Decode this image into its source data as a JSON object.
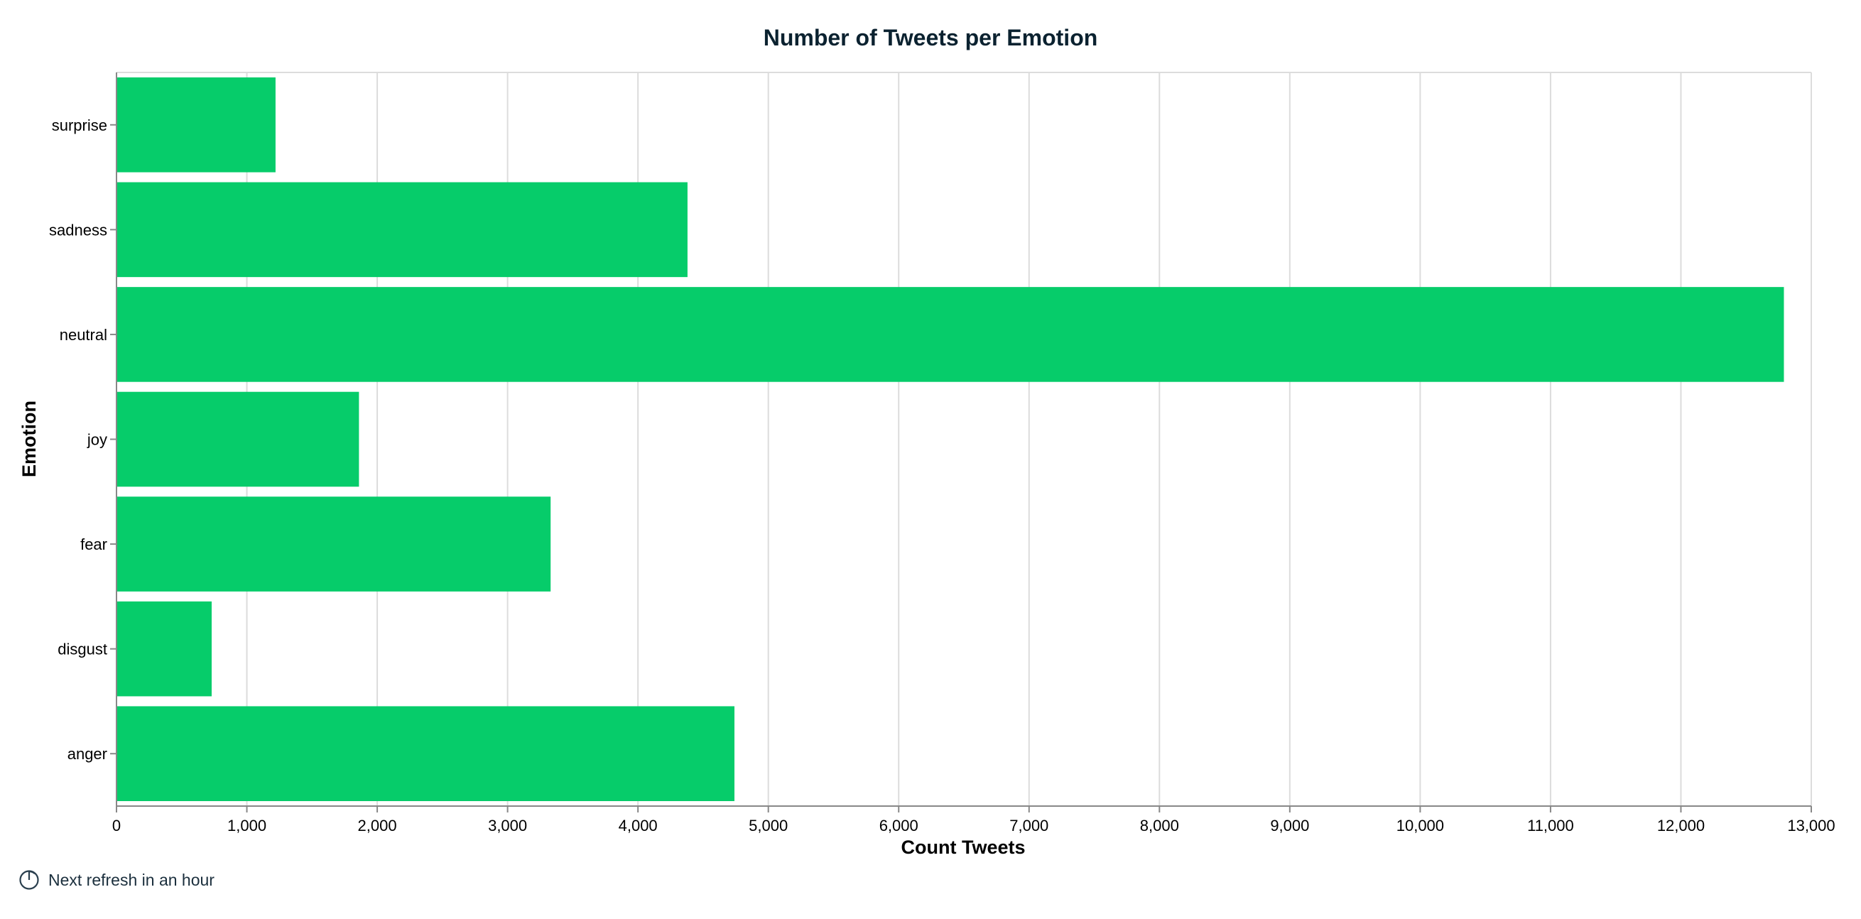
{
  "chart_data": {
    "type": "bar",
    "orientation": "horizontal",
    "title": "Number of Tweets per Emotion",
    "xlabel": "Count Tweets",
    "ylabel": "Emotion",
    "categories": [
      "surprise",
      "sadness",
      "neutral",
      "joy",
      "fear",
      "disgust",
      "anger"
    ],
    "values": [
      1220,
      4380,
      12790,
      1860,
      3330,
      730,
      4740
    ],
    "xlim": [
      0,
      13000
    ],
    "xticks": [
      0,
      1000,
      2000,
      3000,
      4000,
      5000,
      6000,
      7000,
      8000,
      9000,
      10000,
      11000,
      12000,
      13000
    ],
    "xtick_labels": [
      "0",
      "1,000",
      "2,000",
      "3,000",
      "4,000",
      "5,000",
      "6,000",
      "7,000",
      "8,000",
      "9,000",
      "10,000",
      "11,000",
      "12,000",
      "13,000"
    ],
    "grid": true,
    "bar_color": "#06cc6a"
  },
  "footer": {
    "refresh_text": "Next refresh in an hour",
    "icon": "timer-icon"
  }
}
